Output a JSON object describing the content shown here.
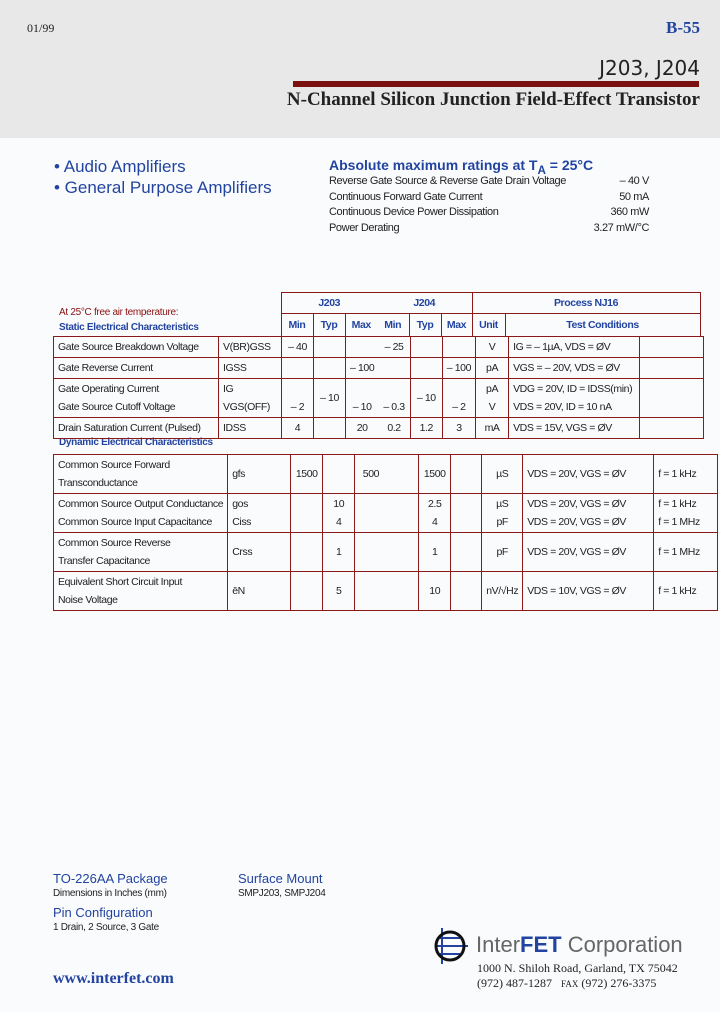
{
  "header": {
    "date": "01/99",
    "page": "B-55",
    "part": "J203, J204",
    "title": "N-Channel Silicon Junction Field-Effect Transistor"
  },
  "features": [
    "• Audio Amplifiers",
    "• General Purpose Amplifiers"
  ],
  "abs_max": {
    "title": "Absolute maximum ratings at T",
    "title_sub": "A",
    "title_end": " = 25°C",
    "rows": [
      {
        "label": "Reverse Gate Source & Reverse Gate Drain Voltage",
        "value": "– 40 V"
      },
      {
        "label": "Continuous Forward Gate Current",
        "value": "50 mA"
      },
      {
        "label": "Continuous Device Power Dissipation",
        "value": "360 mW"
      },
      {
        "label": "Power Derating",
        "value": "3.27 mW/°C"
      }
    ]
  },
  "table": {
    "note": "At 25°C free air temperature:",
    "static_title": "Static Electrical Characteristics",
    "dynamic_title": "Dynamic Electrical Characteristics",
    "groups": [
      "J203",
      "J204",
      "Process NJ16"
    ],
    "cols": [
      "Min",
      "Typ",
      "Max",
      "Min",
      "Typ",
      "Max",
      "Unit",
      "Test Conditions"
    ],
    "static": [
      {
        "p": "Gate Source Breakdown Voltage",
        "s": "V(BR)GSS",
        "v": [
          "– 40",
          "",
          "",
          "– 25",
          "",
          ""
        ],
        "u": "V",
        "t": "IG = – 1µA, VDS = ØV",
        "f": ""
      },
      {
        "p": "Gate Reverse Current",
        "s": "IGSS",
        "v": [
          "",
          "",
          "– 100",
          "",
          "",
          "– 100"
        ],
        "u": "pA",
        "t": "VGS = – 20V, VDS = ØV",
        "f": ""
      },
      {
        "p": "Gate Operating Current\nGate Source Cutoff Voltage",
        "s": "IG\nVGS(OFF)",
        "v": [
          "\n– 2",
          "– 10\n",
          "\n– 10",
          "\n– 0.3",
          "– 10\n",
          "\n– 2"
        ],
        "u": "pA\nV",
        "t": "VDG = 20V, ID = IDSS(min)\nVDS = 20V, ID = 10 nA",
        "f": ""
      },
      {
        "p": "Drain Saturation Current (Pulsed)",
        "s": "IDSS",
        "v": [
          "4",
          "",
          "20",
          "0.2",
          "1.2",
          "3"
        ],
        "u": "mA",
        "t": "VDS = 15V, VGS = ØV",
        "f": ""
      }
    ],
    "dynamic": [
      {
        "p": "Common Source Forward\nTransconductance",
        "s": "gfs",
        "v": [
          "1500",
          "",
          "500",
          "",
          "1500",
          ""
        ],
        "u": "µS",
        "t": "VDS = 20V, VGS = ØV",
        "f": "f = 1 kHz"
      },
      {
        "p": "Common Source Output Conductance\nCommon Source Input Capacitance",
        "s": "gos\nCiss",
        "v": [
          "",
          "10\n4",
          "",
          "",
          "2.5\n4",
          ""
        ],
        "u": "µS\npF",
        "t": "VDS = 20V, VGS = ØV\nVDS = 20V, VGS = ØV",
        "f": "f = 1 kHz\nf = 1 MHz"
      },
      {
        "p": "Common Source Reverse\nTransfer Capacitance",
        "s": "Crss",
        "v": [
          "",
          "1",
          "",
          "",
          "1",
          ""
        ],
        "u": "pF",
        "t": "VDS = 20V, VGS = ØV",
        "f": "f = 1 MHz"
      },
      {
        "p": "Equivalent Short Circuit Input\nNoise Voltage",
        "s": "ēN",
        "v": [
          "",
          "5",
          "",
          "",
          "10",
          ""
        ],
        "u": "nV/√Hz",
        "t": "VDS = 10V, VGS = ØV",
        "f": "f = 1 kHz"
      }
    ]
  },
  "footer": {
    "package": "TO-226AA Package",
    "dims": "Dimensions in Inches (mm)",
    "pin_title": "Pin Configuration",
    "pins": "1 Drain, 2 Source, 3 Gate",
    "smt_title": "Surface Mount",
    "smt": "SMPJ203, SMPJ204",
    "url": "www.interfet.com",
    "company_a": "Inter",
    "company_b": "FET",
    "company_c": " Corporation",
    "address": "1000 N. Shiloh Road, Garland, TX 75042",
    "phone": "(972) 487-1287",
    "fax_label": "FAX",
    "fax": "(972) 276-3375"
  },
  "colors": {
    "accent": "#2244a0",
    "rule": "#7a1010",
    "header_bg": "#e8e8e8"
  }
}
